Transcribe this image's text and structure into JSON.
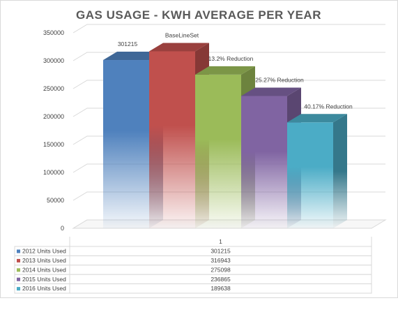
{
  "chart_data": {
    "type": "bar",
    "title": "GAS USAGE - KWH AVERAGE PER YEAR",
    "categories": [
      "1"
    ],
    "ylim": [
      0,
      350000
    ],
    "y_ticks": [
      "0",
      "50000",
      "100000",
      "150000",
      "200000",
      "250000",
      "300000",
      "350000"
    ],
    "grid": true,
    "legend": "data-table",
    "series": [
      {
        "name": "2012 Units Used",
        "values": [
          301215
        ],
        "color": "#4f81bd",
        "label": "301215",
        "table_value": "301215"
      },
      {
        "name": "2013 Units Used",
        "values": [
          316943
        ],
        "color": "#c0504d",
        "label": "BaseLineSet",
        "table_value": "316943"
      },
      {
        "name": "2014 Units Used",
        "values": [
          275098
        ],
        "color": "#9bbb59",
        "label": "13.2% Reduction",
        "table_value": "275098"
      },
      {
        "name": "2015 Units Used",
        "values": [
          236865
        ],
        "color": "#8064a2",
        "label": "25.27% Reduction",
        "table_value": "236865"
      },
      {
        "name": "2016 Units Used",
        "values": [
          189638
        ],
        "color": "#4bacc6",
        "label": "40.17% Reduction",
        "table_value": "189638"
      }
    ]
  }
}
